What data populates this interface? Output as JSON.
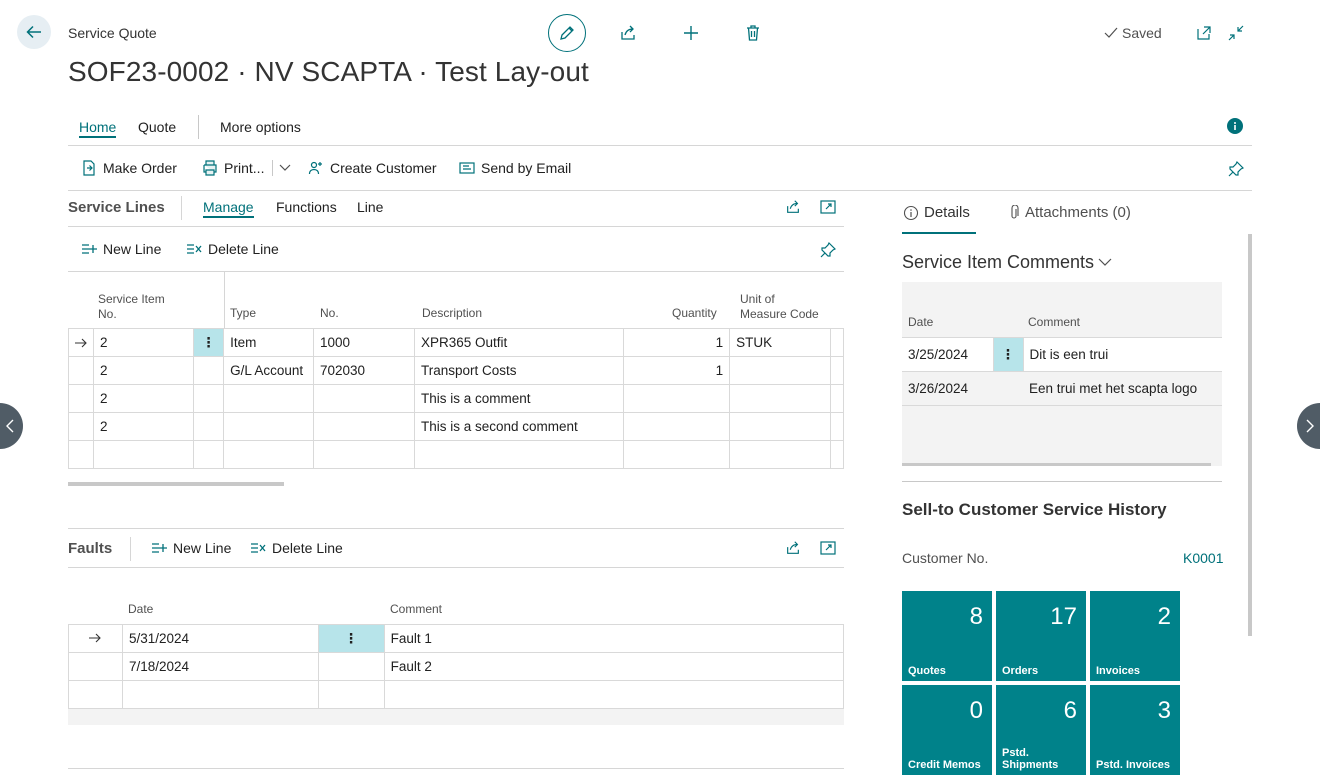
{
  "header": {
    "caption": "Service Quote",
    "title": "SOF23-0002 · NV SCAPTA · Test Lay-out",
    "saved_label": "Saved"
  },
  "menu": {
    "tabs": [
      "Home",
      "Quote",
      "More options"
    ],
    "active_tab": "Home"
  },
  "actions": {
    "make_order": "Make Order",
    "print": "Print...",
    "create_customer": "Create Customer",
    "send_by_email": "Send by Email"
  },
  "service_lines": {
    "title": "Service Lines",
    "tabs": [
      "Manage",
      "Functions",
      "Line"
    ],
    "new_line": "New Line",
    "delete_line": "Delete Line",
    "columns": {
      "item_no": [
        "Service Item",
        "No."
      ],
      "type": "Type",
      "no": "No.",
      "description": "Description",
      "quantity": "Quantity",
      "uom": [
        "Unit of",
        "Measure Code"
      ]
    },
    "rows": [
      {
        "item_no": "2",
        "type": "Item",
        "no": "1000",
        "description": "XPR365 Outfit",
        "quantity": "1",
        "uom": "STUK"
      },
      {
        "item_no": "2",
        "type": "G/L Account",
        "no": "702030",
        "description": "Transport Costs",
        "quantity": "1",
        "uom": ""
      },
      {
        "item_no": "2",
        "type": "",
        "no": "",
        "description": "This is a comment",
        "quantity": "",
        "uom": ""
      },
      {
        "item_no": "2",
        "type": "",
        "no": "",
        "description": "This is a second comment",
        "quantity": "",
        "uom": ""
      }
    ]
  },
  "faults": {
    "title": "Faults",
    "new_line": "New Line",
    "delete_line": "Delete Line",
    "columns": {
      "date": "Date",
      "comment": "Comment"
    },
    "rows": [
      {
        "date": "5/31/2024",
        "comment": "Fault 1"
      },
      {
        "date": "7/18/2024",
        "comment": "Fault 2"
      }
    ]
  },
  "factbox": {
    "tabs": {
      "details": "Details",
      "attachments": "Attachments (0)"
    },
    "comments": {
      "title": "Service Item Comments",
      "columns": {
        "date": "Date",
        "comment": "Comment"
      },
      "rows": [
        {
          "date": "3/25/2024",
          "comment": "Dit is een trui"
        },
        {
          "date": "3/26/2024",
          "comment": "Een trui met het scapta logo"
        }
      ]
    },
    "history": {
      "title": "Sell-to Customer Service History",
      "customer_label": "Customer No.",
      "customer_value": "K0001",
      "tiles": [
        {
          "value": "8",
          "label": "Quotes"
        },
        {
          "value": "17",
          "label": "Orders"
        },
        {
          "value": "2",
          "label": "Invoices"
        },
        {
          "value": "0",
          "label": "Credit Memos"
        },
        {
          "value": "6",
          "label": "Pstd. Shipments"
        },
        {
          "value": "3",
          "label": "Pstd. Invoices"
        }
      ]
    }
  },
  "colors": {
    "accent": "#00717a",
    "tile": "#00828a",
    "selected_cell": "#b7e4ea"
  }
}
